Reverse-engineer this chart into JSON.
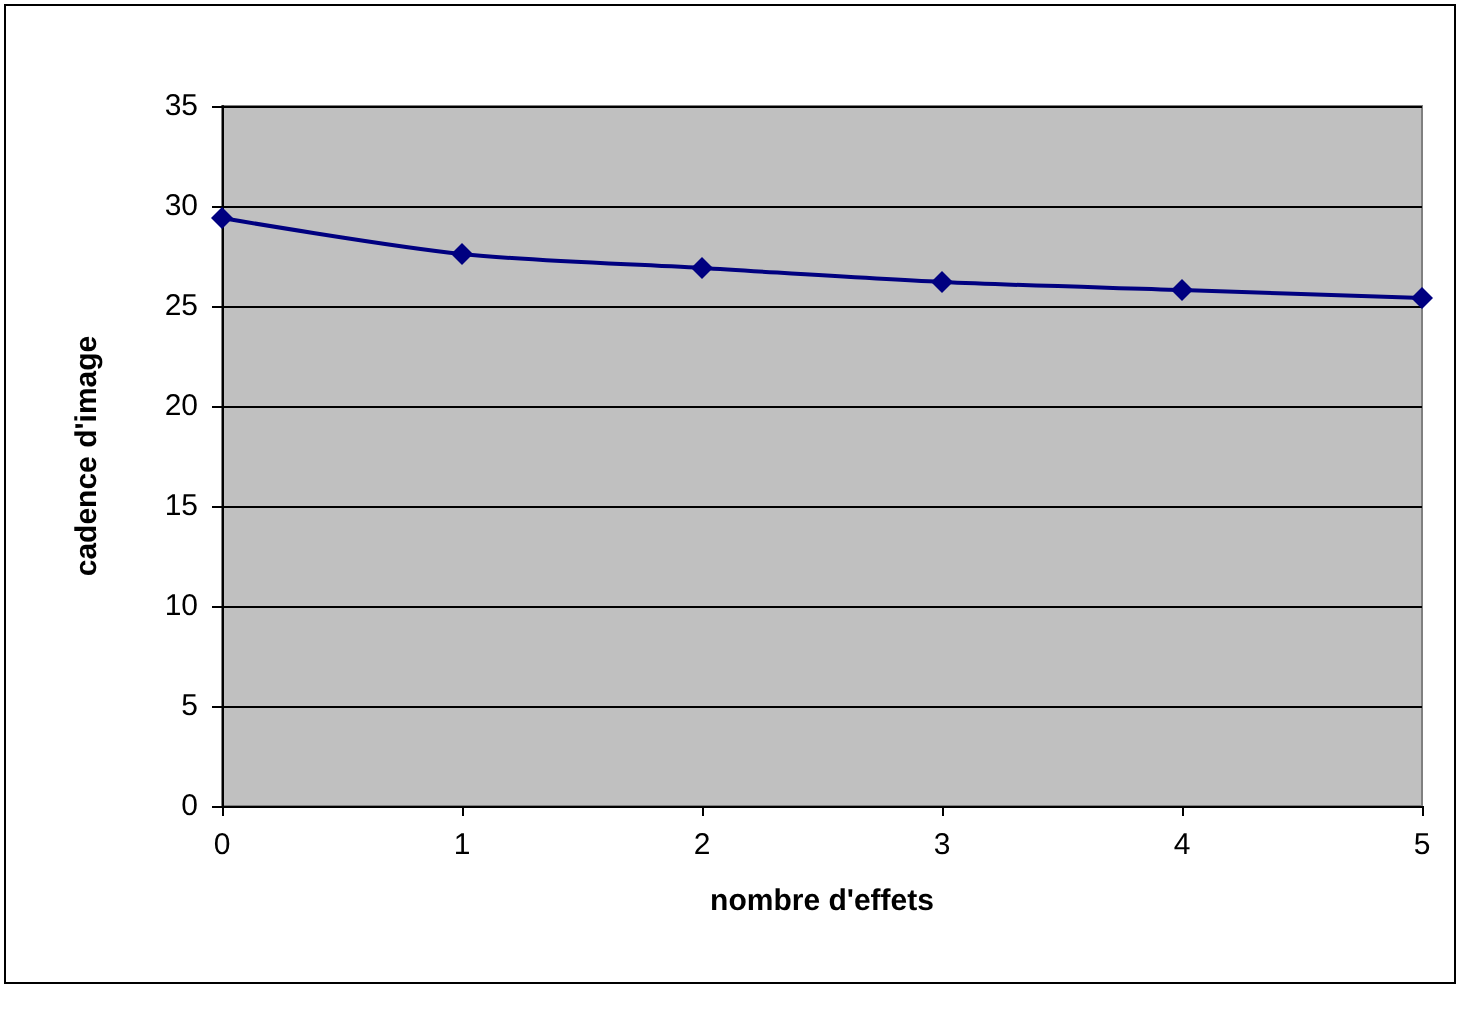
{
  "chart_data": {
    "type": "line",
    "xlabel": "nombre d'effets",
    "ylabel": "cadence d'image",
    "x": [
      0,
      1,
      2,
      3,
      4,
      5
    ],
    "series": [
      {
        "color": "#000080",
        "values": [
          29.4,
          27.6,
          26.9,
          26.2,
          25.8,
          25.4
        ]
      }
    ],
    "xlim": [
      0,
      5
    ],
    "xticks": [
      0,
      1,
      2,
      3,
      4,
      5
    ],
    "ylim": [
      0,
      35
    ],
    "yticks": [
      0,
      5,
      10,
      15,
      20,
      25,
      30,
      35
    ],
    "grid": "y",
    "marker": "diamond",
    "line_style": "solid"
  }
}
